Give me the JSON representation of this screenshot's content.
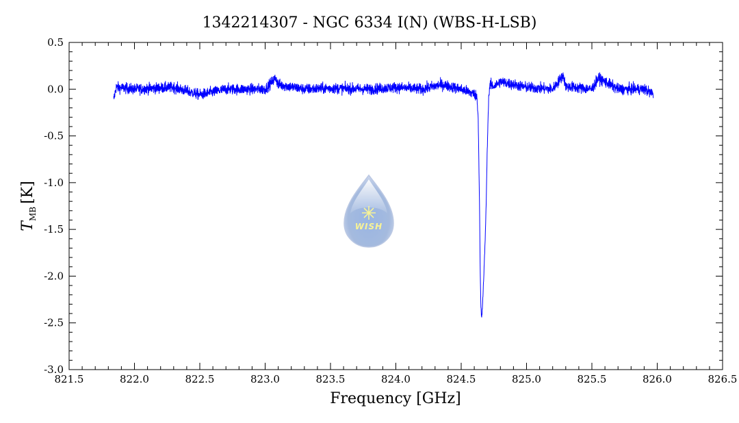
{
  "chart_data": {
    "type": "line",
    "title": "1342214307 - NGC 6334 I(N) (WBS-H-LSB)",
    "xlabel": "Frequency [GHz]",
    "ylabel_main": "T",
    "ylabel_sub": "MB",
    "ylabel_unit": "[K]",
    "xlim": [
      821.5,
      826.5
    ],
    "ylim": [
      -3.0,
      0.5
    ],
    "x_ticks": [
      "821.5",
      "822.0",
      "822.5",
      "823.0",
      "823.5",
      "824.0",
      "824.5",
      "825.0",
      "825.5",
      "826.0",
      "826.5"
    ],
    "y_ticks": [
      "0.5",
      "0.0",
      "-0.5",
      "-1.0",
      "-1.5",
      "-2.0",
      "-2.5",
      "-3.0"
    ],
    "x_tick_values": [
      821.5,
      822.0,
      822.5,
      823.0,
      823.5,
      824.0,
      824.5,
      825.0,
      825.5,
      826.0,
      826.5
    ],
    "y_tick_values": [
      0.5,
      0.0,
      -0.5,
      -1.0,
      -1.5,
      -2.0,
      -2.5,
      -3.0
    ],
    "series": [
      {
        "color": "#0000ff",
        "noise_rms": 0.04,
        "x_start": 821.84,
        "x_end": 825.97,
        "x": [
          821.84,
          821.86,
          822.0,
          822.3,
          822.5,
          822.7,
          823.0,
          823.08,
          823.1,
          823.3,
          823.5,
          823.8,
          824.0,
          824.2,
          824.35,
          824.5,
          824.6,
          824.62,
          824.63,
          824.64,
          824.645,
          824.65,
          824.655,
          824.66,
          824.67,
          824.68,
          824.69,
          824.7,
          824.71,
          824.72,
          824.75,
          824.8,
          825.0,
          825.2,
          825.28,
          825.3,
          825.5,
          825.55,
          825.7,
          825.9,
          825.97
        ],
        "y": [
          -0.12,
          0.02,
          0.0,
          0.02,
          -0.06,
          0.0,
          0.0,
          0.12,
          0.05,
          0.0,
          0.01,
          0.0,
          0.02,
          0.0,
          0.05,
          0.0,
          -0.05,
          -0.08,
          -0.3,
          -1.2,
          -1.9,
          -2.3,
          -2.45,
          -2.4,
          -2.1,
          -1.75,
          -1.3,
          -0.6,
          -0.1,
          0.05,
          0.03,
          0.08,
          0.02,
          0.0,
          0.15,
          0.03,
          0.0,
          0.12,
          0.0,
          0.0,
          -0.05
        ]
      }
    ]
  },
  "logo": {
    "text": "WISH",
    "icon": "wish-droplet-logo"
  }
}
